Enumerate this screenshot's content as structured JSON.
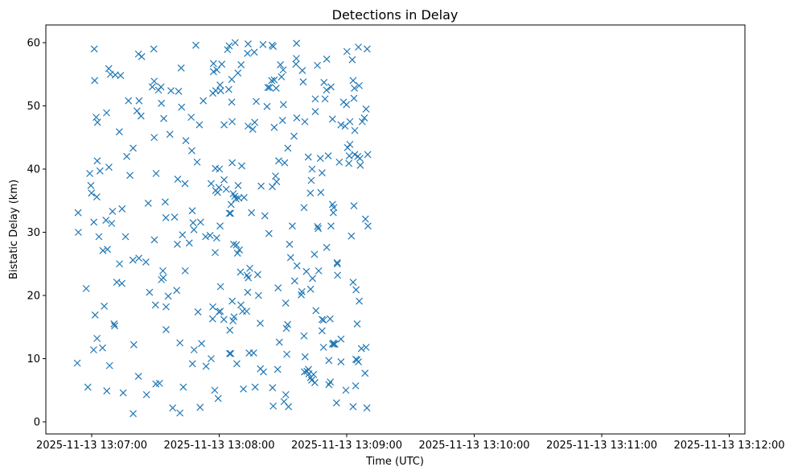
{
  "chart_data": {
    "type": "scatter",
    "title": "Detections in Delay",
    "xlabel": "Time (UTC)",
    "ylabel": "Bistatic Delay (km)",
    "x_ticks": [
      {
        "seconds": 0,
        "label": "2025-11-13 13:07:00"
      },
      {
        "seconds": 60,
        "label": "2025-11-13 13:08:00"
      },
      {
        "seconds": 120,
        "label": "2025-11-13 13:09:00"
      },
      {
        "seconds": 180,
        "label": "2025-11-13 13:10:00"
      },
      {
        "seconds": 240,
        "label": "2025-11-13 13:11:00"
      },
      {
        "seconds": 300,
        "label": "2025-11-13 13:12:00"
      }
    ],
    "y_ticks": [
      0,
      10,
      20,
      30,
      40,
      50,
      60
    ],
    "grid": false,
    "marker": "x",
    "color": "#1f77b4",
    "points": [
      [
        -6.8,
        9.3
      ],
      [
        -6.4,
        33.1
      ],
      [
        -6.3,
        30.0
      ],
      [
        -2.6,
        21.1
      ],
      [
        -1.8,
        5.5
      ],
      [
        -0.9,
        39.3
      ],
      [
        -0.4,
        37.4
      ],
      [
        -0.1,
        36.2
      ],
      [
        1.0,
        31.6
      ],
      [
        1.2,
        59.0
      ],
      [
        0.9,
        11.4
      ],
      [
        1.4,
        54.0
      ],
      [
        1.6,
        16.9
      ],
      [
        2.1,
        48.2
      ],
      [
        2.4,
        35.6
      ],
      [
        2.5,
        13.2
      ],
      [
        2.7,
        47.4
      ],
      [
        2.6,
        41.3
      ],
      [
        3.9,
        39.7
      ],
      [
        3.4,
        29.3
      ],
      [
        5.1,
        11.7
      ],
      [
        5.9,
        18.3
      ],
      [
        5.3,
        27.1
      ],
      [
        6.7,
        31.9
      ],
      [
        7.0,
        48.9
      ],
      [
        7.1,
        4.9
      ],
      [
        7.4,
        27.3
      ],
      [
        8.1,
        40.3
      ],
      [
        8.4,
        8.9
      ],
      [
        8.0,
        55.9
      ],
      [
        8.8,
        55.0
      ],
      [
        9.4,
        31.4
      ],
      [
        9.8,
        33.3
      ],
      [
        10.5,
        15.5
      ],
      [
        10.8,
        15.2
      ],
      [
        11.1,
        54.9
      ],
      [
        11.8,
        22.1
      ],
      [
        13.6,
        54.8
      ],
      [
        13.0,
        45.9
      ],
      [
        13.1,
        25.0
      ],
      [
        14.2,
        21.9
      ],
      [
        14.3,
        33.7
      ],
      [
        14.8,
        4.6
      ],
      [
        15.9,
        29.3
      ],
      [
        16.5,
        42.0
      ],
      [
        17.3,
        50.8
      ],
      [
        18.0,
        39.0
      ],
      [
        19.5,
        43.3
      ],
      [
        19.4,
        25.6
      ],
      [
        19.5,
        1.3
      ],
      [
        19.8,
        12.2
      ],
      [
        21.3,
        49.2
      ],
      [
        22.0,
        58.2
      ],
      [
        22.2,
        25.9
      ],
      [
        22.3,
        50.8
      ],
      [
        22.0,
        7.2
      ],
      [
        23.2,
        48.4
      ],
      [
        23.5,
        57.8
      ],
      [
        25.5,
        25.3
      ],
      [
        25.8,
        4.3
      ],
      [
        26.6,
        34.6
      ],
      [
        27.2,
        20.5
      ],
      [
        28.5,
        53.0
      ],
      [
        29.2,
        59.0
      ],
      [
        29.4,
        45.0
      ],
      [
        29.4,
        53.9
      ],
      [
        29.5,
        28.8
      ],
      [
        30.0,
        18.5
      ],
      [
        30.2,
        6.0
      ],
      [
        30.3,
        39.3
      ],
      [
        31.4,
        52.5
      ],
      [
        31.9,
        6.1
      ],
      [
        32.8,
        22.5
      ],
      [
        32.6,
        53.0
      ],
      [
        32.8,
        50.4
      ],
      [
        33.5,
        23.9
      ],
      [
        33.7,
        22.8
      ],
      [
        33.9,
        48.0
      ],
      [
        34.6,
        34.8
      ],
      [
        34.9,
        32.3
      ],
      [
        35.0,
        18.2
      ],
      [
        35.0,
        14.6
      ],
      [
        36.0,
        19.9
      ],
      [
        36.8,
        45.5
      ],
      [
        37.3,
        52.4
      ],
      [
        38.1,
        2.2
      ],
      [
        39.0,
        32.4
      ],
      [
        40.0,
        20.8
      ],
      [
        40.3,
        28.1
      ],
      [
        40.5,
        38.4
      ],
      [
        40.9,
        52.3
      ],
      [
        41.5,
        1.4
      ],
      [
        41.5,
        12.5
      ],
      [
        42.1,
        56.0
      ],
      [
        42.3,
        49.8
      ],
      [
        42.7,
        29.6
      ],
      [
        43.1,
        5.5
      ],
      [
        43.9,
        37.7
      ],
      [
        44.0,
        23.9
      ],
      [
        44.3,
        44.5
      ],
      [
        45.9,
        28.3
      ],
      [
        46.8,
        48.2
      ],
      [
        47.1,
        42.9
      ],
      [
        47.3,
        33.4
      ],
      [
        47.4,
        9.2
      ],
      [
        47.7,
        31.5
      ],
      [
        48.1,
        30.4
      ],
      [
        48.2,
        11.4
      ],
      [
        49.0,
        59.6
      ],
      [
        49.6,
        41.1
      ],
      [
        50.0,
        17.4
      ],
      [
        50.7,
        47.0
      ],
      [
        51.0,
        2.3
      ],
      [
        51.2,
        31.6
      ],
      [
        51.7,
        12.4
      ],
      [
        52.5,
        50.8
      ],
      [
        53.6,
        29.3
      ],
      [
        53.8,
        8.8
      ],
      [
        55.7,
        29.5
      ],
      [
        56.2,
        10.0
      ],
      [
        56.2,
        37.7
      ],
      [
        57.0,
        18.2
      ],
      [
        56.9,
        16.3
      ],
      [
        57.0,
        52.0
      ],
      [
        57.3,
        55.4
      ],
      [
        57.3,
        56.7
      ],
      [
        57.9,
        5.0
      ],
      [
        58.2,
        40.1
      ],
      [
        58.1,
        26.8
      ],
      [
        58.3,
        36.6
      ],
      [
        58.4,
        52.4
      ],
      [
        58.8,
        29.1
      ],
      [
        58.9,
        55.7
      ],
      [
        59.5,
        3.7
      ],
      [
        59.2,
        36.3
      ],
      [
        59.9,
        37.1
      ],
      [
        60.1,
        40.0
      ],
      [
        59.9,
        17.4
      ],
      [
        60.4,
        31.0
      ],
      [
        60.4,
        53.3
      ],
      [
        60.6,
        21.4
      ],
      [
        60.5,
        17.5
      ],
      [
        60.7,
        52.4
      ],
      [
        61.2,
        56.6
      ],
      [
        62.2,
        16.2
      ],
      [
        62.3,
        47.0
      ],
      [
        62.3,
        38.3
      ],
      [
        63.3,
        36.8
      ],
      [
        63.9,
        58.9
      ],
      [
        64.5,
        52.6
      ],
      [
        64.7,
        59.5
      ],
      [
        64.8,
        33.0
      ],
      [
        64.9,
        10.8
      ],
      [
        65.0,
        14.5
      ],
      [
        65.3,
        33.0
      ],
      [
        65.4,
        10.8
      ],
      [
        65.6,
        34.4
      ],
      [
        65.9,
        50.6
      ],
      [
        65.9,
        54.2
      ],
      [
        66.1,
        41.0
      ],
      [
        66.1,
        47.5
      ],
      [
        66.1,
        19.1
      ],
      [
        66.5,
        16.0
      ],
      [
        66.8,
        28.1
      ],
      [
        66.6,
        36.1
      ],
      [
        67.0,
        16.6
      ],
      [
        67.3,
        35.7
      ],
      [
        67.5,
        60.0
      ],
      [
        67.9,
        35.3
      ],
      [
        68.1,
        28.0
      ],
      [
        68.3,
        9.2
      ],
      [
        68.6,
        26.7
      ],
      [
        68.8,
        55.2
      ],
      [
        68.9,
        37.4
      ],
      [
        69.2,
        35.4
      ],
      [
        69.5,
        27.2
      ],
      [
        70.0,
        23.7
      ],
      [
        70.2,
        18.5
      ],
      [
        70.3,
        56.5
      ],
      [
        70.6,
        40.5
      ],
      [
        71.0,
        17.5
      ],
      [
        71.4,
        5.2
      ],
      [
        71.7,
        35.5
      ],
      [
        72.9,
        17.5
      ],
      [
        73.1,
        23.2
      ],
      [
        73.3,
        58.3
      ],
      [
        73.6,
        59.8
      ],
      [
        73.6,
        46.8
      ],
      [
        73.7,
        22.8
      ],
      [
        73.4,
        20.5
      ],
      [
        74.1,
        10.9
      ],
      [
        74.4,
        24.3
      ],
      [
        75.2,
        33.1
      ],
      [
        75.8,
        46.3
      ],
      [
        76.2,
        10.9
      ],
      [
        76.5,
        58.5
      ],
      [
        76.7,
        47.4
      ],
      [
        76.9,
        5.5
      ],
      [
        77.4,
        50.7
      ],
      [
        78.1,
        23.3
      ],
      [
        78.5,
        20.0
      ],
      [
        79.4,
        8.4
      ],
      [
        79.3,
        15.6
      ],
      [
        79.7,
        37.3
      ],
      [
        80.6,
        59.7
      ],
      [
        80.8,
        7.9
      ],
      [
        81.5,
        32.6
      ],
      [
        82.5,
        49.9
      ],
      [
        82.9,
        52.9
      ],
      [
        83.4,
        29.8
      ],
      [
        83.7,
        52.9
      ],
      [
        84.7,
        54.0
      ],
      [
        85.1,
        5.4
      ],
      [
        84.9,
        59.6
      ],
      [
        85.4,
        59.4
      ],
      [
        85.0,
        37.2
      ],
      [
        85.4,
        2.5
      ],
      [
        85.9,
        46.6
      ],
      [
        85.9,
        54.1
      ],
      [
        86.5,
        38.9
      ],
      [
        86.8,
        52.8
      ],
      [
        87.0,
        38.0
      ],
      [
        87.5,
        8.3
      ],
      [
        87.7,
        21.2
      ],
      [
        88.0,
        41.3
      ],
      [
        88.3,
        12.6
      ],
      [
        88.8,
        56.5
      ],
      [
        89.3,
        54.6
      ],
      [
        89.8,
        47.7
      ],
      [
        90.1,
        55.7
      ],
      [
        90.2,
        50.2
      ],
      [
        90.5,
        3.2
      ],
      [
        90.8,
        41.0
      ],
      [
        91.3,
        4.3
      ],
      [
        91.3,
        18.8
      ],
      [
        91.6,
        14.8
      ],
      [
        91.8,
        10.7
      ],
      [
        92.2,
        15.4
      ],
      [
        92.3,
        43.3
      ],
      [
        92.6,
        2.4
      ],
      [
        93.1,
        28.1
      ],
      [
        93.6,
        26.0
      ],
      [
        94.4,
        31.0
      ],
      [
        95.2,
        45.2
      ],
      [
        95.5,
        22.3
      ],
      [
        96.1,
        56.6
      ],
      [
        96.3,
        57.5
      ],
      [
        96.4,
        59.9
      ],
      [
        96.5,
        48.1
      ],
      [
        96.6,
        24.7
      ],
      [
        98.6,
        20.1
      ],
      [
        98.9,
        20.6
      ],
      [
        99.1,
        55.6
      ],
      [
        99.5,
        53.8
      ],
      [
        99.9,
        13.6
      ],
      [
        99.9,
        33.9
      ],
      [
        100.3,
        47.5
      ],
      [
        100.1,
        7.9
      ],
      [
        100.4,
        10.3
      ],
      [
        101.0,
        23.8
      ],
      [
        101.3,
        8.0
      ],
      [
        101.9,
        41.9
      ],
      [
        102.0,
        8.3
      ],
      [
        102.2,
        7.6
      ],
      [
        102.9,
        36.2
      ],
      [
        103.0,
        7.0
      ],
      [
        103.0,
        21.0
      ],
      [
        103.3,
        38.2
      ],
      [
        103.7,
        40.0
      ],
      [
        103.5,
        6.6
      ],
      [
        103.9,
        22.7
      ],
      [
        104.4,
        7.5
      ],
      [
        104.8,
        26.5
      ],
      [
        105.0,
        6.2
      ],
      [
        105.2,
        51.1
      ],
      [
        105.2,
        49.1
      ],
      [
        105.5,
        17.6
      ],
      [
        106.2,
        56.4
      ],
      [
        106.3,
        30.9
      ],
      [
        106.6,
        30.6
      ],
      [
        106.8,
        23.9
      ],
      [
        107.6,
        41.7
      ],
      [
        107.8,
        36.3
      ],
      [
        108.4,
        14.4
      ],
      [
        108.4,
        39.4
      ],
      [
        108.4,
        16.2
      ],
      [
        109.1,
        16.1
      ],
      [
        109.1,
        11.8
      ],
      [
        109.3,
        53.7
      ],
      [
        109.8,
        51.1
      ],
      [
        110.5,
        52.5
      ],
      [
        110.6,
        57.4
      ],
      [
        110.6,
        27.6
      ],
      [
        111.3,
        42.1
      ],
      [
        111.6,
        5.9
      ],
      [
        111.6,
        9.7
      ],
      [
        112.2,
        16.3
      ],
      [
        112.3,
        6.3
      ],
      [
        112.6,
        31.0
      ],
      [
        112.6,
        53.0
      ],
      [
        113.3,
        34.4
      ],
      [
        113.3,
        12.3
      ],
      [
        113.3,
        47.9
      ],
      [
        113.7,
        12.5
      ],
      [
        113.7,
        33.1
      ],
      [
        113.9,
        33.9
      ],
      [
        114.0,
        12.3
      ],
      [
        114.4,
        12.3
      ],
      [
        115.2,
        3.0
      ],
      [
        115.5,
        25.2
      ],
      [
        115.6,
        25.0
      ],
      [
        115.7,
        23.2
      ],
      [
        116.5,
        41.1
      ],
      [
        117.3,
        13.1
      ],
      [
        117.3,
        9.5
      ],
      [
        117.3,
        47.0
      ],
      [
        118.5,
        50.6
      ],
      [
        119.2,
        46.8
      ],
      [
        119.6,
        5.0
      ],
      [
        119.9,
        50.2
      ],
      [
        120.1,
        58.6
      ],
      [
        120.4,
        43.4
      ],
      [
        121.0,
        40.9
      ],
      [
        121.2,
        42.1
      ],
      [
        121.5,
        47.5
      ],
      [
        121.5,
        43.9
      ],
      [
        122.2,
        29.4
      ],
      [
        122.6,
        57.3
      ],
      [
        123.0,
        22.1
      ],
      [
        123.0,
        2.4
      ],
      [
        123.0,
        54.0
      ],
      [
        123.4,
        51.2
      ],
      [
        123.4,
        34.2
      ],
      [
        123.6,
        52.8
      ],
      [
        123.8,
        46.1
      ],
      [
        123.8,
        42.3
      ],
      [
        124.2,
        5.7
      ],
      [
        124.3,
        9.9
      ],
      [
        124.4,
        20.9
      ],
      [
        124.8,
        9.8
      ],
      [
        124.9,
        15.5
      ],
      [
        125.2,
        42.0
      ],
      [
        125.5,
        9.5
      ],
      [
        125.5,
        59.3
      ],
      [
        125.9,
        19.1
      ],
      [
        125.9,
        53.2
      ],
      [
        126.2,
        41.7
      ],
      [
        126.4,
        40.6
      ],
      [
        126.9,
        11.6
      ],
      [
        127.3,
        47.5
      ],
      [
        128.3,
        48.1
      ],
      [
        128.6,
        7.7
      ],
      [
        128.8,
        32.1
      ],
      [
        129.1,
        11.8
      ],
      [
        129.1,
        49.5
      ],
      [
        129.5,
        2.2
      ],
      [
        129.6,
        59.0
      ],
      [
        129.9,
        42.3
      ],
      [
        130.0,
        31.0
      ]
    ]
  }
}
